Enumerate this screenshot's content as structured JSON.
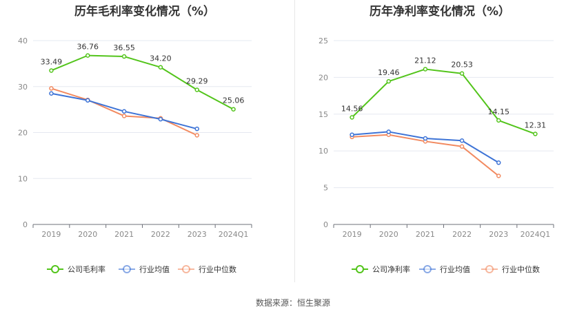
{
  "source": "数据来源：恒生聚源",
  "chart_data": [
    {
      "type": "line",
      "title": "历年毛利率变化情况（%）",
      "categories": [
        "2019",
        "2020",
        "2021",
        "2022",
        "2023",
        "2024Q1"
      ],
      "ylim": [
        0,
        40
      ],
      "yticks": [
        0,
        10,
        20,
        30,
        40
      ],
      "grid": true,
      "legend_position": "bottom",
      "series": [
        {
          "name": "公司毛利率",
          "color": "#52c41a",
          "values": [
            33.49,
            36.76,
            36.55,
            34.2,
            29.29,
            25.06
          ],
          "labels": [
            "33.49",
            "36.76",
            "36.55",
            "34.20",
            "29.29",
            "25.06"
          ]
        },
        {
          "name": "行业均值",
          "color": "#3d73d6",
          "values": [
            28.5,
            27.0,
            24.6,
            22.9,
            20.8,
            null
          ]
        },
        {
          "name": "行业中位数",
          "color": "#f28a60",
          "values": [
            29.6,
            27.1,
            23.6,
            23.1,
            19.4,
            null
          ]
        }
      ]
    },
    {
      "type": "line",
      "title": "历年净利率变化情况（%）",
      "categories": [
        "2019",
        "2020",
        "2021",
        "2022",
        "2023",
        "2024Q1"
      ],
      "ylim": [
        0,
        25
      ],
      "yticks": [
        0,
        5,
        10,
        15,
        20,
        25
      ],
      "grid": true,
      "legend_position": "bottom",
      "series": [
        {
          "name": "公司净利率",
          "color": "#52c41a",
          "values": [
            14.56,
            19.46,
            21.12,
            20.53,
            14.15,
            12.31
          ],
          "labels": [
            "14.56",
            "19.46",
            "21.12",
            "20.53",
            "14.15",
            "12.31"
          ]
        },
        {
          "name": "行业均值",
          "color": "#3d73d6",
          "values": [
            12.2,
            12.6,
            11.7,
            11.4,
            8.4,
            null
          ]
        },
        {
          "name": "行业中位数",
          "color": "#f28a60",
          "values": [
            11.9,
            12.2,
            11.3,
            10.6,
            6.6,
            null
          ]
        }
      ]
    }
  ]
}
